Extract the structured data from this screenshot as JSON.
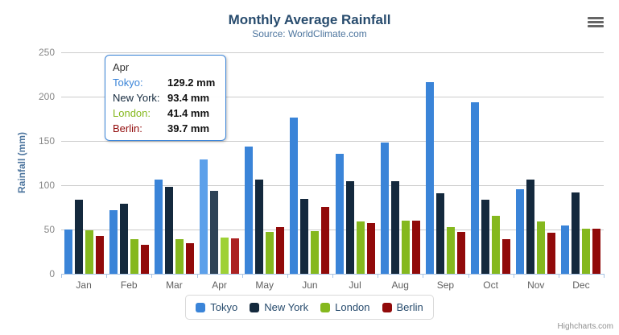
{
  "chart": {
    "title": "Monthly Average Rainfall",
    "subtitle": "Source: WorldClimate.com",
    "credits": "Highcharts.com"
  },
  "chart_data": {
    "type": "bar",
    "title": "Monthly Average Rainfall",
    "subtitle": "Source: WorldClimate.com",
    "xlabel": "",
    "ylabel": "Rainfall (mm)",
    "ylim": [
      0,
      250
    ],
    "yticks": [
      0,
      50,
      100,
      150,
      200,
      250
    ],
    "grid": true,
    "legend_position": "bottom",
    "categories": [
      "Jan",
      "Feb",
      "Mar",
      "Apr",
      "May",
      "Jun",
      "Jul",
      "Aug",
      "Sep",
      "Oct",
      "Nov",
      "Dec"
    ],
    "series": [
      {
        "name": "Tokyo",
        "color": "#3a84d8",
        "hover_color": "#5ca0ea",
        "values": [
          49.9,
          71.5,
          106.4,
          129.2,
          144.0,
          176.0,
          135.6,
          148.5,
          216.4,
          194.1,
          95.6,
          54.4
        ]
      },
      {
        "name": "New York",
        "color": "#14293d",
        "hover_color": "#2e4357",
        "values": [
          83.6,
          78.8,
          98.5,
          93.4,
          106.0,
          84.5,
          105.0,
          104.3,
          91.2,
          83.5,
          106.6,
          92.3
        ]
      },
      {
        "name": "London",
        "color": "#85b81e",
        "hover_color": "#9ed136",
        "values": [
          48.9,
          38.8,
          39.3,
          41.4,
          47.0,
          48.3,
          59.0,
          59.6,
          52.4,
          65.2,
          59.3,
          51.2
        ]
      },
      {
        "name": "Berlin",
        "color": "#910a0a",
        "hover_color": "#ac2323",
        "values": [
          42.4,
          33.2,
          34.5,
          39.7,
          52.6,
          75.5,
          57.4,
          60.4,
          47.6,
          39.1,
          46.8,
          51.1
        ]
      }
    ],
    "hovered_category": "Apr"
  },
  "tooltip": {
    "header": "Apr",
    "rows": [
      {
        "label": "Tokyo:",
        "value": "129.2 mm",
        "color": "#3a84d8"
      },
      {
        "label": "New York:",
        "value": "93.4 mm",
        "color": "#14293d"
      },
      {
        "label": "London:",
        "value": "41.4 mm",
        "color": "#85b81e"
      },
      {
        "label": "Berlin:",
        "value": "39.7 mm",
        "color": "#910a0a"
      }
    ]
  }
}
